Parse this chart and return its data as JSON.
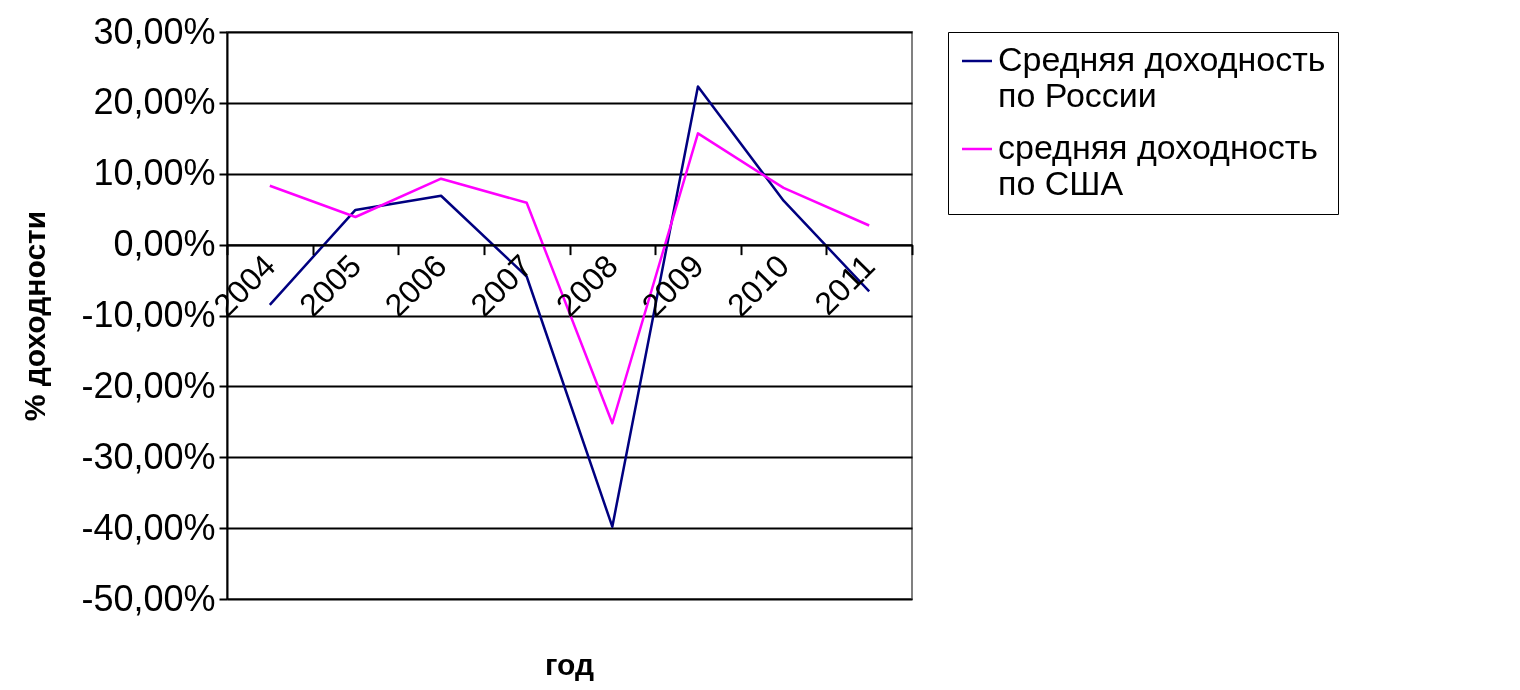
{
  "chart_data": {
    "type": "line",
    "categories": [
      "2004",
      "2005",
      "2006",
      "2007",
      "2008",
      "2009",
      "2010",
      "2011"
    ],
    "series": [
      {
        "name": "Средняя доходность по России",
        "color": "#000080",
        "values": [
          -8.5,
          4.9,
          6.9,
          -4.5,
          -39.8,
          22.3,
          6.2,
          -6.6
        ]
      },
      {
        "name": "средняя доходность по США",
        "color": "#ff00ff",
        "values": [
          8.3,
          3.9,
          9.3,
          5.9,
          -25.2,
          15.7,
          8.0,
          2.7
        ]
      }
    ],
    "xlabel": "год",
    "ylabel": "% доходности",
    "ylim": [
      -50,
      30
    ],
    "yticks": [
      {
        "value": -50,
        "label": "-50,00%"
      },
      {
        "value": -40,
        "label": "-40,00%"
      },
      {
        "value": -30,
        "label": "-30,00%"
      },
      {
        "value": -20,
        "label": "-20,00%"
      },
      {
        "value": -10,
        "label": "-10,00%"
      },
      {
        "value": 0,
        "label": "0,00%"
      },
      {
        "value": 10,
        "label": "10,00%"
      },
      {
        "value": 20,
        "label": "20,00%"
      },
      {
        "value": 30,
        "label": "30,00%"
      }
    ],
    "grid": "y",
    "legend": "right",
    "marker": "none",
    "line_style": "solid"
  }
}
